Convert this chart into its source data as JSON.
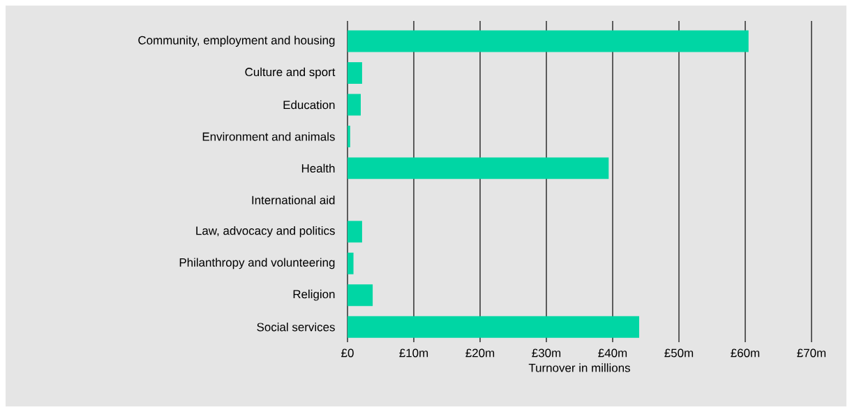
{
  "chart_data": {
    "type": "bar",
    "orientation": "horizontal",
    "xlabel": "Turnover in millions",
    "categories": [
      "Community, employment and housing",
      "Culture and sport",
      "Education",
      "Environment and animals",
      "Health",
      "International aid",
      "Law, advocacy and politics",
      "Philanthropy and volunteering",
      "Religion",
      "Social services"
    ],
    "values": [
      60.5,
      2.2,
      2.0,
      0.4,
      39.4,
      0,
      2.2,
      0.9,
      3.8,
      44.0
    ],
    "color": "#00d6a4",
    "xlim": [
      0,
      70
    ],
    "xticks": [
      {
        "value": 0,
        "label": "£0"
      },
      {
        "value": 10,
        "label": "£10m"
      },
      {
        "value": 20,
        "label": "£20m"
      },
      {
        "value": 30,
        "label": "£30m"
      },
      {
        "value": 40,
        "label": "£40m"
      },
      {
        "value": 50,
        "label": "£50m"
      },
      {
        "value": 60,
        "label": "£60m"
      },
      {
        "value": 70,
        "label": "£70m"
      }
    ],
    "grid": "x"
  }
}
